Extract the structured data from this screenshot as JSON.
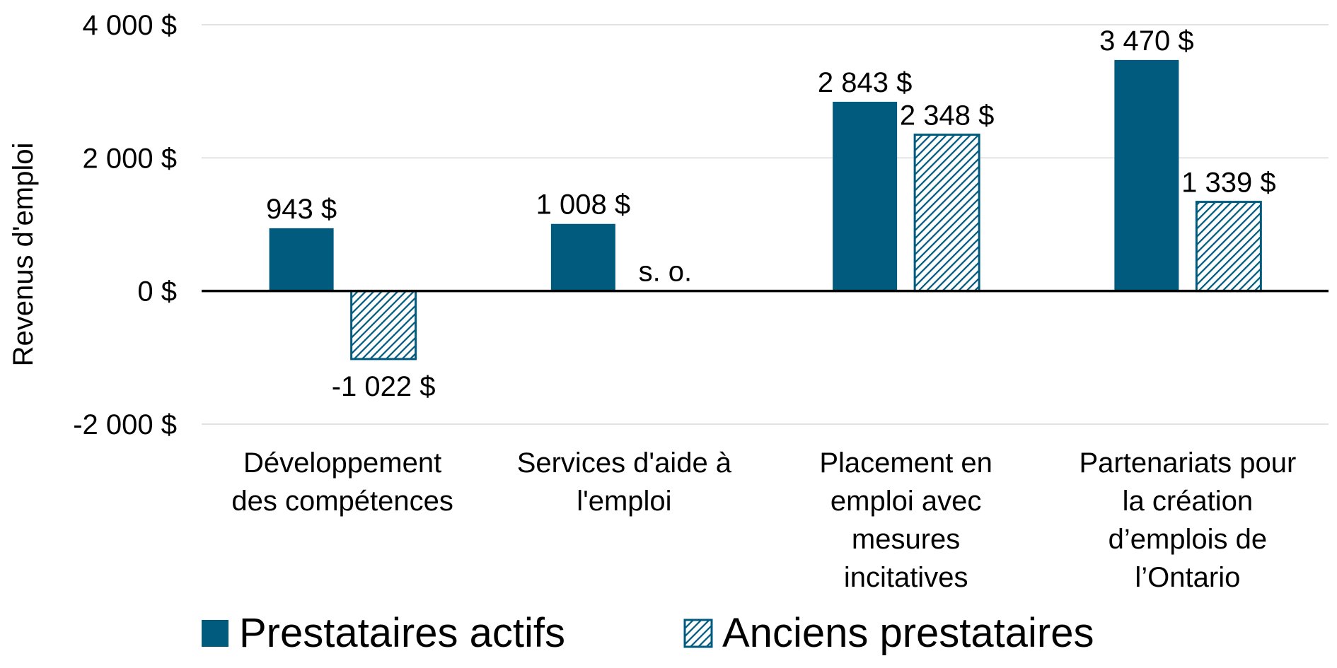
{
  "chart_data": {
    "type": "bar",
    "ylabel": "Revenus d'emploi",
    "ylim": [
      -2000,
      4000
    ],
    "yticks": [
      {
        "value": 4000,
        "label": "4 000 $"
      },
      {
        "value": 2000,
        "label": "2 000 $"
      },
      {
        "value": 0,
        "label": "0 $"
      },
      {
        "value": -2000,
        "label": "-2 000 $"
      }
    ],
    "grid": true,
    "legend_position": "bottom",
    "categories": [
      {
        "lines": [
          "Développement",
          "des compétences"
        ]
      },
      {
        "lines": [
          "Services d'aide à",
          "l'emploi"
        ]
      },
      {
        "lines": [
          "Placement en",
          "emploi avec",
          "mesures",
          "incitatives"
        ]
      },
      {
        "lines": [
          "Partenariats pour",
          "la création",
          "d’emplois de",
          "l’Ontario"
        ]
      }
    ],
    "series": [
      {
        "name": "Prestataires actifs",
        "pattern": "solid",
        "color": "#005b7f",
        "values": [
          943,
          1008,
          2843,
          3470
        ],
        "labels": [
          "943 $",
          "1 008 $",
          "2 843 $",
          "3 470 $"
        ]
      },
      {
        "name": "Anciens prestataires",
        "pattern": "hatched",
        "color": "#005b7f",
        "values": [
          -1022,
          null,
          2348,
          1339
        ],
        "labels": [
          "-1 022 $",
          "s. o.",
          "2 348 $",
          "1 339 $"
        ]
      }
    ]
  }
}
